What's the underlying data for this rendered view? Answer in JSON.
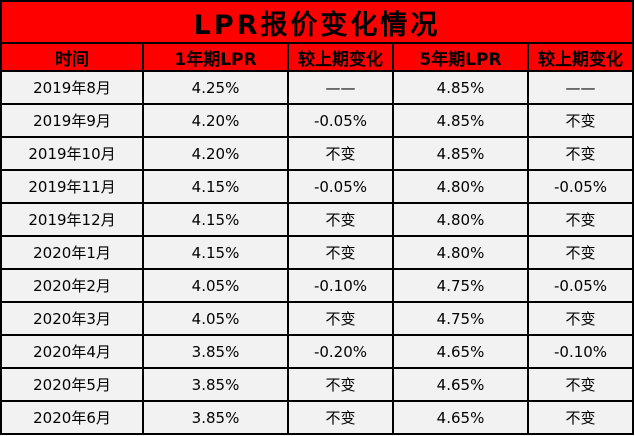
{
  "chart_data": {
    "type": "table",
    "title": "LPR报价变化情况",
    "columns": [
      "时间",
      "1年期LPR",
      "较上期变化",
      "5年期LPR",
      "较上期变化"
    ],
    "rows": [
      [
        "2019年8月",
        "4.25%",
        "——",
        "4.85%",
        "——"
      ],
      [
        "2019年9月",
        "4.20%",
        "-0.05%",
        "4.85%",
        "不变"
      ],
      [
        "2019年10月",
        "4.20%",
        "不变",
        "4.85%",
        "不变"
      ],
      [
        "2019年11月",
        "4.15%",
        "-0.05%",
        "4.80%",
        "-0.05%"
      ],
      [
        "2019年12月",
        "4.15%",
        "不变",
        "4.80%",
        "不变"
      ],
      [
        "2020年1月",
        "4.15%",
        "不变",
        "4.80%",
        "不变"
      ],
      [
        "2020年2月",
        "4.05%",
        "-0.10%",
        "4.75%",
        "-0.05%"
      ],
      [
        "2020年3月",
        "4.05%",
        "不变",
        "4.75%",
        "不变"
      ],
      [
        "2020年4月",
        "3.85%",
        "-0.20%",
        "4.65%",
        "-0.10%"
      ],
      [
        "2020年5月",
        "3.85%",
        "不变",
        "4.65%",
        "不变"
      ],
      [
        "2020年6月",
        "3.85%",
        "不变",
        "4.65%",
        "不变"
      ]
    ],
    "layout": {
      "legend": "none",
      "grid": "black cell borders",
      "row_background": "light gray",
      "header_background": "red"
    }
  },
  "colors": {
    "header_red": "#ff0000",
    "row_bg": "#f2f2f2",
    "border": "#000000",
    "text": "#000000"
  }
}
